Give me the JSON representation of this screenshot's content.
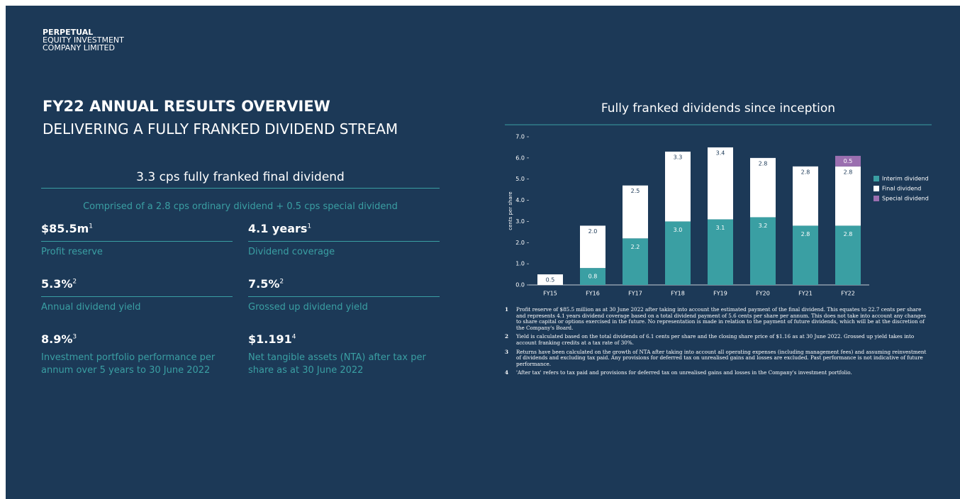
{
  "header": {
    "company": [
      "PERPETUAL",
      "EQUITY INVESTMENT",
      "COMPANY LIMITED"
    ],
    "title": "FY22 ANNUAL RESULTS OVERVIEW",
    "subtitle": "DELIVERING A FULLY FRANKED DIVIDEND STREAM"
  },
  "highlight": {
    "title": "3.3 cps fully franked final dividend",
    "text": "Comprised of a 2.8 cps ordinary dividend + 0.5 cps special dividend"
  },
  "metrics": [
    {
      "value": "$85.5m",
      "note": "1",
      "label": "Profit reserve"
    },
    {
      "value": "4.1 years",
      "note": "1",
      "label": "Dividend coverage"
    },
    {
      "value": "5.3%",
      "note": "2",
      "label": "Annual dividend yield"
    },
    {
      "value": "7.5%",
      "note": "2",
      "label": "Grossed up dividend yield"
    },
    {
      "value": "8.9%",
      "note": "3",
      "label": "Investment portfolio performance per annum over 5 years to 30 June 2022"
    },
    {
      "value": "$1.191",
      "note": "4",
      "label": "Net tangible assets (NTA) after tax per share as at 30 June 2022"
    }
  ],
  "chart_data": {
    "type": "stacked_bar",
    "title": "Fully franked dividends since inception",
    "y_label": "cents per share",
    "categories": [
      "FY15",
      "FY16",
      "FY17",
      "FY18",
      "FY19",
      "FY20",
      "FY21",
      "FY22"
    ],
    "series": [
      {
        "name": "Interim dividend",
        "color": "#3a9fa3",
        "values": [
          null,
          0.8,
          2.2,
          3.0,
          3.1,
          3.2,
          2.8,
          2.8
        ],
        "value_labels": [
          null,
          "0.8",
          "2.2",
          "3.0",
          "3.1",
          "3.2",
          "2.8",
          "2.8"
        ]
      },
      {
        "name": "Final dividend",
        "color": "#ffffff",
        "values": [
          0.5,
          2.0,
          2.5,
          3.3,
          3.4,
          2.8,
          2.8,
          2.8
        ],
        "value_labels": [
          "0.5",
          "2.0",
          "2.5",
          "3.3",
          "3.4",
          "2.8",
          "2.8",
          "2.8"
        ]
      },
      {
        "name": "Special dividend",
        "color": "#9b6fb0",
        "values": [
          null,
          null,
          null,
          null,
          null,
          null,
          null,
          0.5
        ],
        "value_labels": [
          null,
          null,
          null,
          null,
          null,
          null,
          null,
          "0.5"
        ]
      }
    ],
    "ylim": [
      0,
      7
    ],
    "yticks": [
      {
        "value": 0,
        "label": "0.0"
      },
      {
        "value": 1,
        "label": "1.0"
      },
      {
        "value": 2,
        "label": "2.0"
      },
      {
        "value": 3,
        "label": "3.0"
      },
      {
        "value": 4,
        "label": "4.0"
      },
      {
        "value": 5,
        "label": "5.0"
      },
      {
        "value": 6,
        "label": "6.0"
      },
      {
        "value": 7,
        "label": "7.0"
      }
    ],
    "legend": "right"
  },
  "footnotes": [
    {
      "num": "1",
      "text": "Profit reserve of $85.5 million as at 30 June 2022 after taking into account the estimated payment of the final dividend. This equates to 22.7 cents per share and represents 4.1 years dividend coverage based on a total dividend payment of 5.6 cents per share per annum. This does not take into account any changes to share capital or options exercised in the future. No representation is made in relation to the payment of future dividends, which will be at the discretion of the Company's Board."
    },
    {
      "num": "2",
      "text": "Yield is calculated based on the total dividends of 6.1 cents per share and the closing share price of $1.16 as at 30 June 2022. Grossed up yield takes into account franking credits at a tax rate of 30%."
    },
    {
      "num": "3",
      "text": "Returns have been calculated on the growth of NTA after taking into account all operating expenses (including management fees) and assuming reinvestment of dividends and excluding tax paid. Any provisions for deferred tax on unrealised gains and losses are excluded. Past performance is not indicative of future performance."
    },
    {
      "num": "4",
      "text": "'After tax' refers to tax paid and provisions for deferred tax on unrealised gains and losses in the Company's investment portfolio."
    }
  ]
}
